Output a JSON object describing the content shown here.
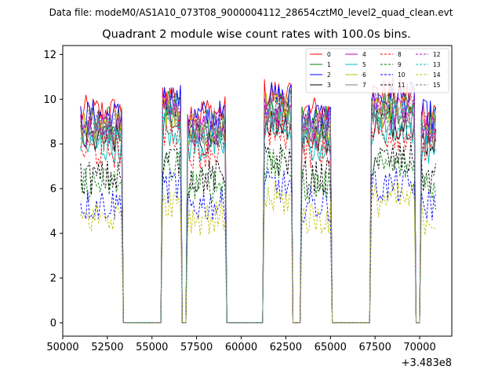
{
  "chart_data": {
    "type": "line",
    "suptitle": "Data file: modeM0/AS1A10_073T08_9000004112_28654cztM0_level2_quad_clean.evt",
    "title": "Quadrant 2 module wise count rates with 100.0s bins.",
    "xlabel": "",
    "ylabel": "",
    "x_offset_label": "+3.483e8",
    "xlim": [
      50000,
      71800
    ],
    "ylim": [
      -0.6,
      12.4
    ],
    "xticks": [
      50000,
      52500,
      55000,
      57500,
      60000,
      62500,
      65000,
      67500,
      70000
    ],
    "yticks": [
      0,
      2,
      4,
      6,
      8,
      10,
      12
    ],
    "bin_width_s": 100,
    "legend_position": "top-right",
    "on_intervals": [
      [
        51000,
        53300
      ],
      [
        55600,
        56650
      ],
      [
        56950,
        59150
      ],
      [
        61300,
        62800
      ],
      [
        63400,
        65000
      ],
      [
        67300,
        69750
      ],
      [
        70050,
        70900
      ]
    ],
    "off_intervals": [
      [
        53500,
        55500
      ],
      [
        56700,
        56900
      ],
      [
        59200,
        61200
      ],
      [
        62850,
        63300
      ],
      [
        65050,
        67200
      ],
      [
        69800,
        70000
      ]
    ],
    "series": [
      {
        "name": "0",
        "color": "#ff0000",
        "dash": "solid",
        "level": 9.4
      },
      {
        "name": "1",
        "color": "#008000",
        "dash": "solid",
        "level": 8.9
      },
      {
        "name": "2",
        "color": "#0000ff",
        "dash": "solid",
        "level": 9.2
      },
      {
        "name": "3",
        "color": "#000000",
        "dash": "solid",
        "level": 8.2
      },
      {
        "name": "4",
        "color": "#c000c0",
        "dash": "solid",
        "level": 8.6
      },
      {
        "name": "5",
        "color": "#00bfbf",
        "dash": "solid",
        "level": 7.9
      },
      {
        "name": "6",
        "color": "#bfbf00",
        "dash": "solid",
        "level": 8.7
      },
      {
        "name": "7",
        "color": "#808080",
        "dash": "solid",
        "level": 8.4
      },
      {
        "name": "8",
        "color": "#ff0000",
        "dash": "dashed",
        "level": 7.7
      },
      {
        "name": "9",
        "color": "#008000",
        "dash": "dashed",
        "level": 6.2
      },
      {
        "name": "10",
        "color": "#0000ff",
        "dash": "dashed",
        "level": 5.3
      },
      {
        "name": "11",
        "color": "#000000",
        "dash": "dashed",
        "level": 6.5
      },
      {
        "name": "12",
        "color": "#c000c0",
        "dash": "dashed",
        "level": 8.8
      },
      {
        "name": "13",
        "color": "#00bfbf",
        "dash": "dashed",
        "level": 8.5
      },
      {
        "name": "14",
        "color": "#bfbf00",
        "dash": "dashed",
        "level": 4.7
      },
      {
        "name": "15",
        "color": "#808080",
        "dash": "dashed",
        "level": 8.8
      }
    ]
  }
}
